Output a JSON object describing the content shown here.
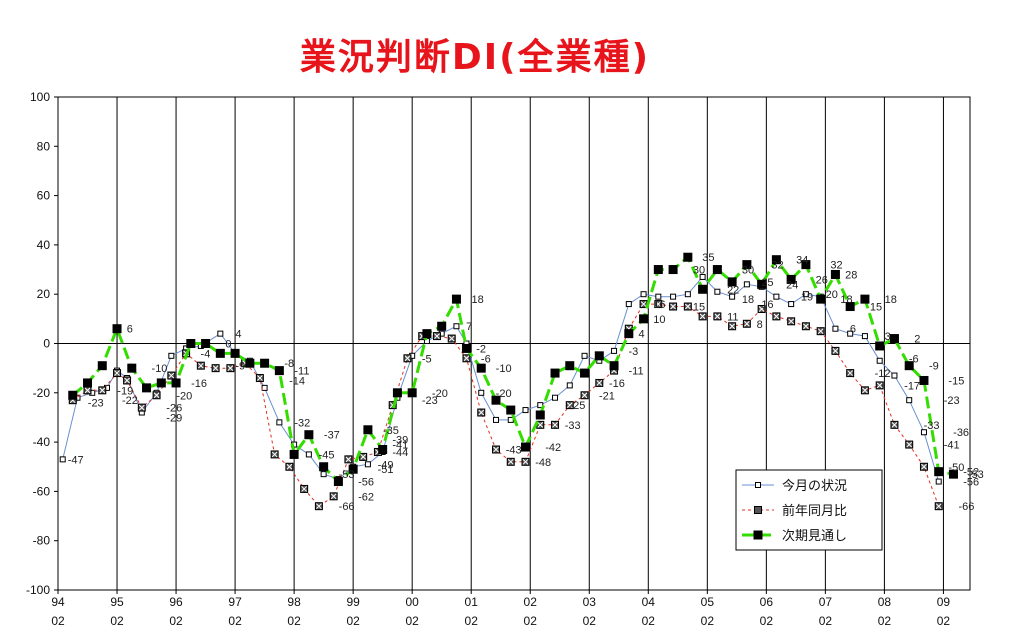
{
  "chart_data": {
    "type": "line",
    "title": "業況判断DI(全業種)",
    "ylim": [
      -100,
      100
    ],
    "y_ticks": [
      100,
      80,
      60,
      40,
      20,
      0,
      -20,
      -40,
      -60,
      -80,
      -100
    ],
    "x_tick_years": [
      "94",
      "95",
      "96",
      "97",
      "98",
      "99",
      "00",
      "01",
      "02",
      "03",
      "04",
      "05",
      "06",
      "07",
      "08",
      "09"
    ],
    "x_tick_month": "02",
    "grid": "vertical-year",
    "legend_position": "bottom-right",
    "series": [
      {
        "name": "今月の状況",
        "color": "#6a8fd0",
        "marker": "open-square",
        "points": [
          [
            1994.08,
            -47
          ],
          [
            1994.33,
            -22
          ],
          [
            1994.58,
            -20
          ],
          [
            1994.83,
            -18
          ],
          [
            1995.0,
            -11
          ],
          [
            1995.17,
            -14
          ],
          [
            1995.42,
            -28
          ],
          [
            1995.67,
            -20
          ],
          [
            1995.92,
            -5
          ],
          [
            1996.17,
            -2
          ],
          [
            1996.42,
            -1
          ],
          [
            1996.75,
            4
          ],
          [
            1997.0,
            -4
          ],
          [
            1997.25,
            -7
          ],
          [
            1997.5,
            -18
          ],
          [
            1997.75,
            -32
          ],
          [
            1998.0,
            -41
          ],
          [
            1998.25,
            -45
          ],
          [
            1998.5,
            -53
          ],
          [
            1998.75,
            -55
          ],
          [
            1999.0,
            -50
          ],
          [
            1999.25,
            -49
          ],
          [
            1999.5,
            -44
          ],
          [
            1999.75,
            -22
          ],
          [
            2000.0,
            -5
          ],
          [
            2000.25,
            1
          ],
          [
            2000.5,
            4
          ],
          [
            2000.75,
            7
          ],
          [
            2000.92,
            0
          ],
          [
            2001.17,
            -20
          ],
          [
            2001.42,
            -31
          ],
          [
            2001.67,
            -31
          ],
          [
            2001.92,
            -27
          ],
          [
            2002.17,
            -25
          ],
          [
            2002.42,
            -22
          ],
          [
            2002.67,
            -17
          ],
          [
            2002.92,
            -5
          ],
          [
            2003.17,
            -7
          ],
          [
            2003.42,
            -3
          ],
          [
            2003.67,
            16
          ],
          [
            2003.92,
            20
          ],
          [
            2004.17,
            19
          ],
          [
            2004.42,
            19
          ],
          [
            2004.67,
            20
          ],
          [
            2004.92,
            27
          ],
          [
            2005.17,
            21
          ],
          [
            2005.42,
            19
          ],
          [
            2005.67,
            24
          ],
          [
            2005.92,
            23
          ],
          [
            2006.17,
            19
          ],
          [
            2006.42,
            16
          ],
          [
            2006.67,
            20
          ],
          [
            2006.92,
            19
          ],
          [
            2007.17,
            6
          ],
          [
            2007.42,
            4
          ],
          [
            2007.67,
            3
          ],
          [
            2007.92,
            -7
          ],
          [
            2008.17,
            -13
          ],
          [
            2008.42,
            -23
          ],
          [
            2008.67,
            -36
          ],
          [
            2008.92,
            -56
          ]
        ]
      },
      {
        "name": "前年同月比",
        "color": "#e0301e",
        "marker": "x-square",
        "points": [
          [
            1994.25,
            -23
          ],
          [
            1994.5,
            -19
          ],
          [
            1994.75,
            -19
          ],
          [
            1995.0,
            -12
          ],
          [
            1995.17,
            -15
          ],
          [
            1995.42,
            -26
          ],
          [
            1995.67,
            -21
          ],
          [
            1995.92,
            -13
          ],
          [
            1996.17,
            -4
          ],
          [
            1996.42,
            -9
          ],
          [
            1996.67,
            -10
          ],
          [
            1996.92,
            -10
          ],
          [
            1997.17,
            -8
          ],
          [
            1997.42,
            -14
          ],
          [
            1997.67,
            -45
          ],
          [
            1997.92,
            -50
          ],
          [
            1998.17,
            -59
          ],
          [
            1998.42,
            -66
          ],
          [
            1998.67,
            -62
          ],
          [
            1998.92,
            -47
          ],
          [
            1999.17,
            -46
          ],
          [
            1999.42,
            -44
          ],
          [
            1999.67,
            -25
          ],
          [
            1999.92,
            -6
          ],
          [
            2000.17,
            3
          ],
          [
            2000.42,
            3
          ],
          [
            2000.67,
            2
          ],
          [
            2000.92,
            -6
          ],
          [
            2001.17,
            -28
          ],
          [
            2001.42,
            -43
          ],
          [
            2001.67,
            -48
          ],
          [
            2001.92,
            -48
          ],
          [
            2002.17,
            -33
          ],
          [
            2002.42,
            -33
          ],
          [
            2002.67,
            -25
          ],
          [
            2002.92,
            -21
          ],
          [
            2003.17,
            -16
          ],
          [
            2003.42,
            -11
          ],
          [
            2003.67,
            6
          ],
          [
            2003.92,
            16
          ],
          [
            2004.17,
            16
          ],
          [
            2004.42,
            15
          ],
          [
            2004.67,
            15
          ],
          [
            2004.92,
            11
          ],
          [
            2005.17,
            11
          ],
          [
            2005.42,
            7
          ],
          [
            2005.67,
            8
          ],
          [
            2005.92,
            14
          ],
          [
            2006.17,
            11
          ],
          [
            2006.42,
            9
          ],
          [
            2006.67,
            7
          ],
          [
            2006.92,
            5
          ],
          [
            2007.17,
            -3
          ],
          [
            2007.42,
            -12
          ],
          [
            2007.67,
            -19
          ],
          [
            2007.92,
            -17
          ],
          [
            2008.17,
            -33
          ],
          [
            2008.42,
            -41
          ],
          [
            2008.67,
            -50
          ],
          [
            2008.92,
            -66
          ]
        ]
      },
      {
        "name": "次期見通し",
        "color": "#33dd00",
        "marker": "filled-square",
        "points": [
          [
            1994.25,
            -21
          ],
          [
            1994.5,
            -16
          ],
          [
            1994.75,
            -9
          ],
          [
            1995.0,
            6
          ],
          [
            1995.25,
            -10
          ],
          [
            1995.5,
            -18
          ],
          [
            1995.75,
            -16
          ],
          [
            1996.0,
            -16
          ],
          [
            1996.25,
            0
          ],
          [
            1996.5,
            0
          ],
          [
            1996.75,
            -4
          ],
          [
            1997.0,
            -4
          ],
          [
            1997.25,
            -8
          ],
          [
            1997.5,
            -8
          ],
          [
            1997.75,
            -11
          ],
          [
            1998.0,
            -45
          ],
          [
            1998.25,
            -37
          ],
          [
            1998.5,
            -50
          ],
          [
            1998.75,
            -56
          ],
          [
            1999.0,
            -51
          ],
          [
            1999.25,
            -35
          ],
          [
            1999.5,
            -43
          ],
          [
            1999.75,
            -20
          ],
          [
            2000.0,
            -20
          ],
          [
            2000.25,
            4
          ],
          [
            2000.5,
            7
          ],
          [
            2000.75,
            18
          ],
          [
            2000.92,
            -2
          ],
          [
            2001.17,
            -10
          ],
          [
            2001.42,
            -23
          ],
          [
            2001.67,
            -27
          ],
          [
            2001.92,
            -42
          ],
          [
            2002.17,
            -29
          ],
          [
            2002.42,
            -12
          ],
          [
            2002.67,
            -9
          ],
          [
            2002.92,
            -12
          ],
          [
            2003.17,
            -5
          ],
          [
            2003.42,
            -9
          ],
          [
            2003.67,
            4
          ],
          [
            2003.92,
            10
          ],
          [
            2004.17,
            30
          ],
          [
            2004.42,
            30
          ],
          [
            2004.67,
            35
          ],
          [
            2004.92,
            22
          ],
          [
            2005.17,
            30
          ],
          [
            2005.42,
            25
          ],
          [
            2005.67,
            32
          ],
          [
            2005.92,
            24
          ],
          [
            2006.17,
            34
          ],
          [
            2006.42,
            26
          ],
          [
            2006.67,
            32
          ],
          [
            2006.92,
            18
          ],
          [
            2007.17,
            28
          ],
          [
            2007.42,
            15
          ],
          [
            2007.67,
            18
          ],
          [
            2007.92,
            -1
          ],
          [
            2008.17,
            2
          ],
          [
            2008.42,
            -9
          ],
          [
            2008.67,
            -15
          ],
          [
            2008.92,
            -52
          ],
          [
            2009.17,
            -53
          ]
        ]
      }
    ],
    "labels": [
      {
        "v": -47,
        "x": 1994.08,
        "y": -47
      },
      {
        "v": -23,
        "x": 1994.42,
        "y": -24
      },
      {
        "v": -19,
        "x": 1994.92,
        "y": -19
      },
      {
        "v": -22,
        "x": 1995.0,
        "y": -23
      },
      {
        "v": 6,
        "x": 1995.08,
        "y": 6
      },
      {
        "v": -10,
        "x": 1995.5,
        "y": -10
      },
      {
        "v": -26,
        "x": 1995.75,
        "y": -26
      },
      {
        "v": -29,
        "x": 1995.75,
        "y": -30
      },
      {
        "v": -20,
        "x": 1995.92,
        "y": -21
      },
      {
        "v": -16,
        "x": 1996.17,
        "y": -16
      },
      {
        "v": -4,
        "x": 1996.33,
        "y": -4
      },
      {
        "v": 0,
        "x": 1996.75,
        "y": 0
      },
      {
        "v": -9,
        "x": 1996.92,
        "y": -9
      },
      {
        "v": 4,
        "x": 1996.92,
        "y": 4
      },
      {
        "v": -8,
        "x": 1997.75,
        "y": -8
      },
      {
        "v": -11,
        "x": 1997.92,
        "y": -11
      },
      {
        "v": -14,
        "x": 1997.83,
        "y": -15
      },
      {
        "v": -32,
        "x": 1997.92,
        "y": -32
      },
      {
        "v": -37,
        "x": 1998.42,
        "y": -37
      },
      {
        "v": -45,
        "x": 1998.33,
        "y": -45
      },
      {
        "v": -53,
        "x": 1998.67,
        "y": -53
      },
      {
        "v": -56,
        "x": 1999.0,
        "y": -56
      },
      {
        "v": -62,
        "x": 1999.0,
        "y": -62
      },
      {
        "v": -66,
        "x": 1998.67,
        "y": -66
      },
      {
        "v": -35,
        "x": 1999.42,
        "y": -35
      },
      {
        "v": -39,
        "x": 1999.58,
        "y": -39
      },
      {
        "v": -41,
        "x": 1999.58,
        "y": -41
      },
      {
        "v": -44,
        "x": 1999.58,
        "y": -44
      },
      {
        "v": -49,
        "x": 1999.33,
        "y": -49
      },
      {
        "v": -51,
        "x": 1999.33,
        "y": -51
      },
      {
        "v": -20,
        "x": 2000.25,
        "y": -20
      },
      {
        "v": -23,
        "x": 2000.08,
        "y": -23
      },
      {
        "v": -5,
        "x": 2000.08,
        "y": -6
      },
      {
        "v": 18,
        "x": 2000.92,
        "y": 18
      },
      {
        "v": 7,
        "x": 2000.83,
        "y": 7
      },
      {
        "v": -2,
        "x": 2001.0,
        "y": -2
      },
      {
        "v": -6,
        "x": 2001.08,
        "y": -6
      },
      {
        "v": -10,
        "x": 2001.33,
        "y": -10
      },
      {
        "v": -20,
        "x": 2001.33,
        "y": -20
      },
      {
        "v": -43,
        "x": 2001.5,
        "y": -43
      },
      {
        "v": -48,
        "x": 2002.0,
        "y": -48
      },
      {
        "v": -42,
        "x": 2002.17,
        "y": -42
      },
      {
        "v": -33,
        "x": 2002.5,
        "y": -33
      },
      {
        "v": -25,
        "x": 2002.58,
        "y": -25
      },
      {
        "v": -21,
        "x": 2003.08,
        "y": -21
      },
      {
        "v": -16,
        "x": 2003.25,
        "y": -16
      },
      {
        "v": -11,
        "x": 2003.58,
        "y": -11
      },
      {
        "v": -3,
        "x": 2003.58,
        "y": -3
      },
      {
        "v": 4,
        "x": 2003.75,
        "y": 4
      },
      {
        "v": 10,
        "x": 2004.0,
        "y": 10
      },
      {
        "v": 16,
        "x": 2004.0,
        "y": 16
      },
      {
        "v": 35,
        "x": 2004.83,
        "y": 35
      },
      {
        "v": 30,
        "x": 2004.67,
        "y": 30
      },
      {
        "v": 15,
        "x": 2004.67,
        "y": 15
      },
      {
        "v": 22,
        "x": 2005.25,
        "y": 22
      },
      {
        "v": 11,
        "x": 2005.25,
        "y": 11
      },
      {
        "v": 30,
        "x": 2005.5,
        "y": 30
      },
      {
        "v": 18,
        "x": 2005.5,
        "y": 18
      },
      {
        "v": 8,
        "x": 2005.75,
        "y": 8
      },
      {
        "v": 16,
        "x": 2005.83,
        "y": 16
      },
      {
        "v": 32,
        "x": 2006.0,
        "y": 32
      },
      {
        "v": 25,
        "x": 2005.83,
        "y": 25
      },
      {
        "v": 24,
        "x": 2006.25,
        "y": 24
      },
      {
        "v": 34,
        "x": 2006.42,
        "y": 34
      },
      {
        "v": 19,
        "x": 2006.5,
        "y": 19
      },
      {
        "v": 26,
        "x": 2006.75,
        "y": 26
      },
      {
        "v": 32,
        "x": 2007.0,
        "y": 32
      },
      {
        "v": 20,
        "x": 2006.92,
        "y": 20
      },
      {
        "v": 18,
        "x": 2007.17,
        "y": 18
      },
      {
        "v": 28,
        "x": 2007.25,
        "y": 28
      },
      {
        "v": 6,
        "x": 2007.33,
        "y": 6
      },
      {
        "v": 15,
        "x": 2007.67,
        "y": 15
      },
      {
        "v": 18,
        "x": 2007.92,
        "y": 18
      },
      {
        "v": 3,
        "x": 2007.92,
        "y": 3
      },
      {
        "v": -12,
        "x": 2007.75,
        "y": -12
      },
      {
        "v": 2,
        "x": 2008.42,
        "y": 2
      },
      {
        "v": -6,
        "x": 2008.33,
        "y": -6
      },
      {
        "v": -9,
        "x": 2008.67,
        "y": -9
      },
      {
        "v": -17,
        "x": 2008.25,
        "y": -17
      },
      {
        "v": -15,
        "x": 2009.0,
        "y": -15
      },
      {
        "v": -23,
        "x": 2008.92,
        "y": -23
      },
      {
        "v": -33,
        "x": 2008.58,
        "y": -33
      },
      {
        "v": -36,
        "x": 2009.08,
        "y": -36
      },
      {
        "v": -41,
        "x": 2008.92,
        "y": -41
      },
      {
        "v": -50,
        "x": 2009.0,
        "y": -50
      },
      {
        "v": -52,
        "x": 2009.25,
        "y": -52
      },
      {
        "v": -53,
        "x": 2009.33,
        "y": -53
      },
      {
        "v": -56,
        "x": 2009.25,
        "y": -56
      },
      {
        "v": -66,
        "x": 2009.17,
        "y": -66
      }
    ]
  }
}
